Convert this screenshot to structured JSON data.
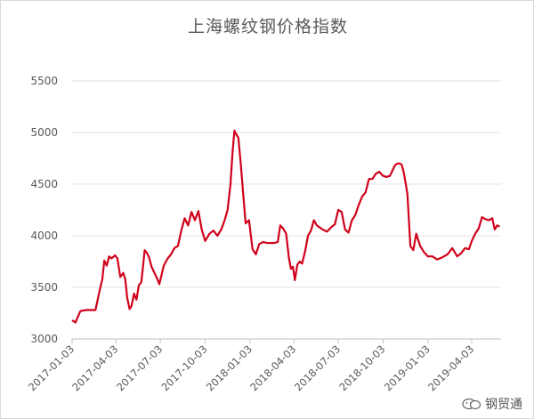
{
  "chart_data": {
    "type": "line",
    "title": "上海螺纹钢价格指数",
    "xlabel": "",
    "ylabel": "",
    "ylim": [
      3000,
      5500
    ],
    "yticks": [
      3000,
      3500,
      4000,
      4500,
      5000,
      5500
    ],
    "grid": "horizontal",
    "legend": "none",
    "x_tick_labels": [
      "2017-01-03",
      "2017-04-03",
      "2017-07-03",
      "2017-10-03",
      "2018-01-03",
      "2018-04-03",
      "2018-07-03",
      "2018-10-03",
      "2019-01-03",
      "2019-04-03"
    ],
    "series": [
      {
        "color": "#d0021b",
        "x": [
          "2017-01-03",
          "2017-01-10",
          "2017-01-20",
          "2017-02-01",
          "2017-02-10",
          "2017-02-20",
          "2017-03-01",
          "2017-03-06",
          "2017-03-10",
          "2017-03-15",
          "2017-03-20",
          "2017-03-25",
          "2017-04-01",
          "2017-04-06",
          "2017-04-12",
          "2017-04-18",
          "2017-04-22",
          "2017-04-26",
          "2017-05-01",
          "2017-05-05",
          "2017-05-10",
          "2017-05-15",
          "2017-05-20",
          "2017-05-25",
          "2017-06-01",
          "2017-06-06",
          "2017-06-10",
          "2017-06-15",
          "2017-06-20",
          "2017-06-25",
          "2017-07-01",
          "2017-07-10",
          "2017-07-18",
          "2017-07-25",
          "2017-08-01",
          "2017-08-08",
          "2017-08-15",
          "2017-08-22",
          "2017-08-29",
          "2017-09-05",
          "2017-09-12",
          "2017-09-19",
          "2017-09-26",
          "2017-10-03",
          "2017-10-12",
          "2017-10-20",
          "2017-10-28",
          "2017-11-05",
          "2017-11-12",
          "2017-11-18",
          "2017-11-24",
          "2017-11-28",
          "2017-12-02",
          "2017-12-06",
          "2017-12-10",
          "2017-12-15",
          "2017-12-20",
          "2017-12-25",
          "2018-01-01",
          "2018-01-08",
          "2018-01-15",
          "2018-01-22",
          "2018-01-30",
          "2018-02-06",
          "2018-02-14",
          "2018-02-22",
          "2018-03-01",
          "2018-03-06",
          "2018-03-12",
          "2018-03-18",
          "2018-03-24",
          "2018-03-28",
          "2018-04-01",
          "2018-04-05",
          "2018-04-10",
          "2018-04-15",
          "2018-04-20",
          "2018-04-26",
          "2018-05-02",
          "2018-05-08",
          "2018-05-14",
          "2018-05-20",
          "2018-05-26",
          "2018-06-01",
          "2018-06-10",
          "2018-06-18",
          "2018-06-26",
          "2018-07-03",
          "2018-07-10",
          "2018-07-17",
          "2018-07-24",
          "2018-07-31",
          "2018-08-07",
          "2018-08-14",
          "2018-08-21",
          "2018-08-28",
          "2018-09-04",
          "2018-09-11",
          "2018-09-18",
          "2018-09-25",
          "2018-10-03",
          "2018-10-10",
          "2018-10-17",
          "2018-10-22",
          "2018-10-27",
          "2018-11-01",
          "2018-11-06",
          "2018-11-10",
          "2018-11-14",
          "2018-11-18",
          "2018-11-22",
          "2018-11-28",
          "2018-12-04",
          "2018-12-10",
          "2018-12-18",
          "2018-12-26",
          "2019-01-03",
          "2019-01-12",
          "2019-01-22",
          "2019-02-01",
          "2019-02-12",
          "2019-02-22",
          "2019-03-04",
          "2019-03-12",
          "2019-03-20",
          "2019-03-28",
          "2019-04-03",
          "2019-04-10",
          "2019-04-17",
          "2019-04-24",
          "2019-05-01",
          "2019-05-08",
          "2019-05-15",
          "2019-05-20",
          "2019-05-25",
          "2019-05-30"
        ],
        "y": [
          3180,
          3160,
          3270,
          3280,
          3280,
          3280,
          3480,
          3580,
          3760,
          3710,
          3800,
          3780,
          3810,
          3780,
          3600,
          3640,
          3580,
          3400,
          3290,
          3320,
          3440,
          3380,
          3520,
          3550,
          3860,
          3830,
          3790,
          3700,
          3650,
          3600,
          3530,
          3710,
          3780,
          3820,
          3880,
          3900,
          4050,
          4170,
          4100,
          4230,
          4150,
          4240,
          4060,
          3950,
          4020,
          4050,
          4000,
          4060,
          4150,
          4250,
          4500,
          4800,
          5020,
          4980,
          4950,
          4700,
          4400,
          4120,
          4150,
          3870,
          3820,
          3920,
          3940,
          3930,
          3930,
          3930,
          3940,
          4100,
          4070,
          4020,
          3780,
          3680,
          3700,
          3570,
          3720,
          3750,
          3730,
          3850,
          4000,
          4050,
          4150,
          4100,
          4080,
          4060,
          4040,
          4080,
          4110,
          4250,
          4230,
          4060,
          4030,
          4150,
          4200,
          4300,
          4380,
          4420,
          4550,
          4550,
          4600,
          4620,
          4580,
          4570,
          4580,
          4630,
          4680,
          4700,
          4700,
          4690,
          4620,
          4520,
          4400,
          3900,
          3860,
          4020,
          3900,
          3840,
          3800,
          3800,
          3770,
          3790,
          3820,
          3880,
          3800,
          3830,
          3880,
          3870,
          3950,
          4020,
          4070,
          4180,
          4160,
          4150,
          4170,
          4060,
          4100,
          4090
        ],
        "show_label": false
      }
    ]
  },
  "watermark": {
    "label": "钢贸通",
    "icon": "wechat-logo-icon"
  }
}
